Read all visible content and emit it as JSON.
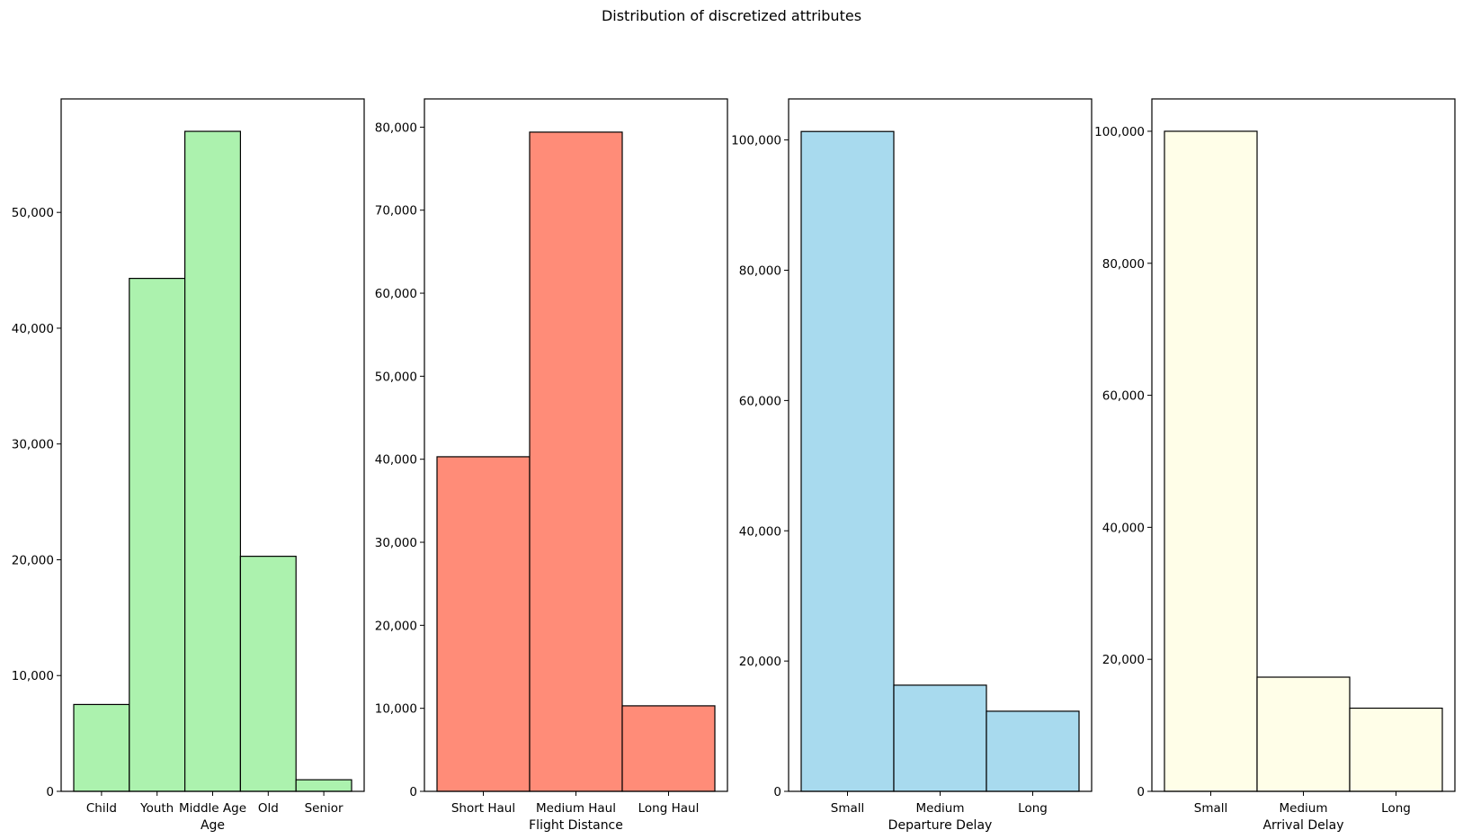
{
  "suptitle": "Distribution of discretized attributes",
  "chart_data": [
    {
      "type": "bar",
      "xlabel": "Age",
      "ylabel": "",
      "categories": [
        "Child",
        "Youth",
        "Middle Age",
        "Old",
        "Senior"
      ],
      "values": [
        7500,
        44300,
        57000,
        20300,
        1000
      ],
      "ylim": [
        0,
        59800
      ],
      "yticks": [
        0,
        10000,
        20000,
        30000,
        40000,
        50000
      ],
      "ytick_labels": [
        "0",
        "10,000",
        "20,000",
        "30,000",
        "40,000",
        "50,000"
      ],
      "color": "#acf2ae",
      "grid": false
    },
    {
      "type": "bar",
      "xlabel": "Flight Distance",
      "ylabel": "",
      "categories": [
        "Short Haul",
        "Medium Haul",
        "Long Haul"
      ],
      "values": [
        40300,
        79400,
        10300
      ],
      "ylim": [
        0,
        83400
      ],
      "yticks": [
        0,
        10000,
        20000,
        30000,
        40000,
        50000,
        60000,
        70000,
        80000
      ],
      "ytick_labels": [
        "0",
        "10,000",
        "20,000",
        "30,000",
        "40,000",
        "50,000",
        "60,000",
        "70,000",
        "80,000"
      ],
      "color": "#ff8c78",
      "grid": false
    },
    {
      "type": "bar",
      "xlabel": "Departure Delay",
      "ylabel": "",
      "categories": [
        "Small",
        "Medium",
        "Long"
      ],
      "values": [
        101300,
        16300,
        12300
      ],
      "ylim": [
        0,
        106300
      ],
      "yticks": [
        0,
        20000,
        40000,
        60000,
        80000,
        100000
      ],
      "ytick_labels": [
        "0",
        "20,000",
        "40,000",
        "60,000",
        "80,000",
        "100,000"
      ],
      "color": "#a8daee",
      "grid": false
    },
    {
      "type": "bar",
      "xlabel": "Arrival Delay",
      "ylabel": "",
      "categories": [
        "Small",
        "Medium",
        "Long"
      ],
      "values": [
        100000,
        17300,
        12600
      ],
      "ylim": [
        0,
        104900
      ],
      "yticks": [
        0,
        20000,
        40000,
        60000,
        80000,
        100000
      ],
      "ytick_labels": [
        "0",
        "20,000",
        "40,000",
        "60,000",
        "80,000",
        "100,000"
      ],
      "color": "#fffee8",
      "grid": false
    }
  ]
}
